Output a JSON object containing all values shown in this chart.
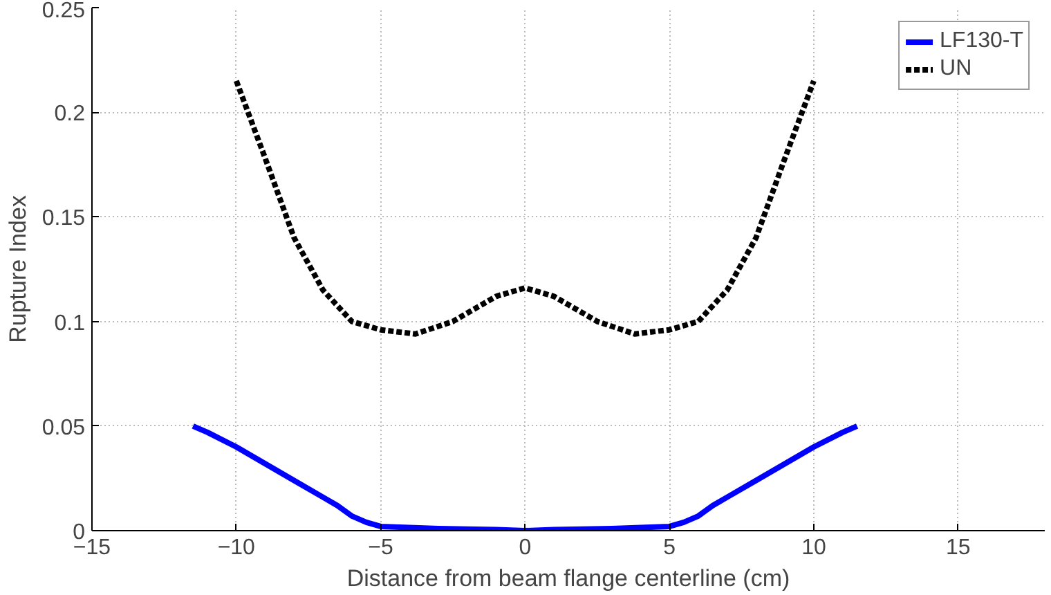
{
  "chart_data": {
    "type": "line",
    "xlabel": "Distance from beam flange centerline (cm)",
    "ylabel": "Rupture Index",
    "xlim": [
      -15,
      18
    ],
    "xticks": [
      -15,
      -10,
      -5,
      0,
      5,
      10,
      15
    ],
    "ylim": [
      0,
      0.25
    ],
    "yticks": [
      0,
      0.05,
      0.1,
      0.15,
      0.2,
      0.25
    ],
    "grid": true,
    "legend": "top right",
    "series": [
      {
        "name": "LF130-T",
        "color": "#0000ff",
        "line_style": "solid",
        "x": [
          -11.5,
          -11,
          -10,
          -9,
          -8,
          -7,
          -6.5,
          -6,
          -5.5,
          -5,
          -4,
          -3,
          -1,
          0,
          1,
          3,
          4,
          5,
          5.5,
          6,
          6.5,
          7,
          8,
          9,
          10,
          11,
          11.5
        ],
        "values": [
          0.05,
          0.047,
          0.04,
          0.032,
          0.024,
          0.016,
          0.012,
          0.007,
          0.004,
          0.002,
          0.0015,
          0.001,
          0.0005,
          0,
          0.0005,
          0.001,
          0.0015,
          0.002,
          0.004,
          0.007,
          0.012,
          0.016,
          0.024,
          0.032,
          0.04,
          0.047,
          0.05
        ]
      },
      {
        "name": "UN",
        "color": "#000000",
        "line_style": "dashed",
        "x": [
          -10,
          -9,
          -8,
          -7,
          -6,
          -5,
          -3.8,
          -2.5,
          -1,
          0,
          1,
          2.5,
          3.8,
          5,
          6,
          7,
          8,
          9,
          10
        ],
        "values": [
          0.215,
          0.178,
          0.14,
          0.115,
          0.1,
          0.096,
          0.094,
          0.1,
          0.112,
          0.116,
          0.112,
          0.1,
          0.094,
          0.096,
          0.1,
          0.115,
          0.14,
          0.178,
          0.215
        ]
      }
    ]
  }
}
